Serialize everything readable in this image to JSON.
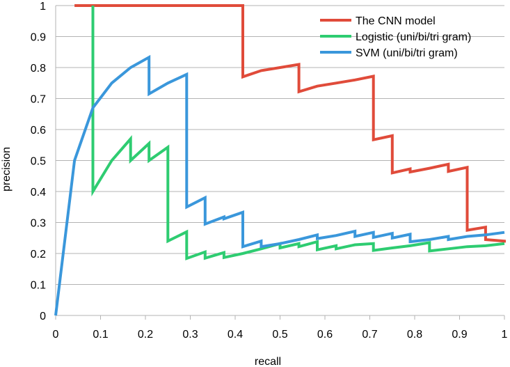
{
  "chart_data": {
    "type": "line",
    "title": "",
    "xlabel": "recall",
    "ylabel": "precision",
    "xlim": [
      0,
      1
    ],
    "ylim": [
      0,
      1
    ],
    "x_ticks": [
      "0",
      "0.1",
      "0.2",
      "0.3",
      "0.4",
      "0.5",
      "0.6",
      "0.7",
      "0.8",
      "0.9",
      "1"
    ],
    "y_ticks": [
      "0",
      "0.1",
      "0.2",
      "0.3",
      "0.4",
      "0.5",
      "0.6",
      "0.7",
      "0.8",
      "0.9",
      "1"
    ],
    "grid": true,
    "legend_position": "top-right",
    "series": [
      {
        "name": "The CNN model",
        "color": "#e04b3a",
        "points": [
          [
            0.042,
            1.0
          ],
          [
            0.417,
            1.0
          ],
          [
            0.417,
            0.77
          ],
          [
            0.458,
            0.79
          ],
          [
            0.5,
            0.8
          ],
          [
            0.542,
            0.81
          ],
          [
            0.542,
            0.722
          ],
          [
            0.583,
            0.74
          ],
          [
            0.625,
            0.75
          ],
          [
            0.667,
            0.76
          ],
          [
            0.708,
            0.772
          ],
          [
            0.708,
            0.567
          ],
          [
            0.75,
            0.58
          ],
          [
            0.75,
            0.46
          ],
          [
            0.79,
            0.473
          ],
          [
            0.79,
            0.463
          ],
          [
            0.833,
            0.475
          ],
          [
            0.875,
            0.488
          ],
          [
            0.875,
            0.465
          ],
          [
            0.917,
            0.478
          ],
          [
            0.917,
            0.275
          ],
          [
            0.958,
            0.285
          ],
          [
            0.958,
            0.245
          ],
          [
            1.0,
            0.24
          ],
          [
            1.0,
            0.235
          ]
        ]
      },
      {
        "name": "Logistic (uni/bi/tri gram)",
        "color": "#2ecc71",
        "points": [
          [
            0.083,
            1.0
          ],
          [
            0.083,
            0.4
          ],
          [
            0.125,
            0.5
          ],
          [
            0.167,
            0.57
          ],
          [
            0.167,
            0.5
          ],
          [
            0.208,
            0.555
          ],
          [
            0.208,
            0.5
          ],
          [
            0.25,
            0.543
          ],
          [
            0.25,
            0.24
          ],
          [
            0.292,
            0.27
          ],
          [
            0.292,
            0.184
          ],
          [
            0.333,
            0.205
          ],
          [
            0.333,
            0.185
          ],
          [
            0.375,
            0.203
          ],
          [
            0.375,
            0.187
          ],
          [
            0.417,
            0.2
          ],
          [
            0.458,
            0.215
          ],
          [
            0.5,
            0.232
          ],
          [
            0.5,
            0.218
          ],
          [
            0.542,
            0.232
          ],
          [
            0.542,
            0.222
          ],
          [
            0.583,
            0.238
          ],
          [
            0.583,
            0.212
          ],
          [
            0.625,
            0.225
          ],
          [
            0.625,
            0.215
          ],
          [
            0.667,
            0.228
          ],
          [
            0.708,
            0.232
          ],
          [
            0.708,
            0.21
          ],
          [
            0.75,
            0.218
          ],
          [
            0.79,
            0.225
          ],
          [
            0.833,
            0.235
          ],
          [
            0.833,
            0.208
          ],
          [
            0.875,
            0.215
          ],
          [
            0.917,
            0.222
          ],
          [
            0.958,
            0.225
          ],
          [
            1.0,
            0.232
          ]
        ]
      },
      {
        "name": "SVM (uni/bi/tri gram)",
        "color": "#3a97db",
        "points": [
          [
            0.0,
            0.0
          ],
          [
            0.042,
            0.5
          ],
          [
            0.083,
            0.67
          ],
          [
            0.125,
            0.75
          ],
          [
            0.167,
            0.8
          ],
          [
            0.208,
            0.833
          ],
          [
            0.208,
            0.715
          ],
          [
            0.25,
            0.75
          ],
          [
            0.292,
            0.778
          ],
          [
            0.292,
            0.35
          ],
          [
            0.333,
            0.38
          ],
          [
            0.333,
            0.295
          ],
          [
            0.375,
            0.318
          ],
          [
            0.375,
            0.312
          ],
          [
            0.417,
            0.333
          ],
          [
            0.417,
            0.222
          ],
          [
            0.458,
            0.24
          ],
          [
            0.458,
            0.222
          ],
          [
            0.5,
            0.232
          ],
          [
            0.542,
            0.245
          ],
          [
            0.583,
            0.26
          ],
          [
            0.583,
            0.248
          ],
          [
            0.625,
            0.258
          ],
          [
            0.667,
            0.272
          ],
          [
            0.667,
            0.255
          ],
          [
            0.708,
            0.268
          ],
          [
            0.708,
            0.252
          ],
          [
            0.75,
            0.265
          ],
          [
            0.75,
            0.25
          ],
          [
            0.79,
            0.262
          ],
          [
            0.79,
            0.238
          ],
          [
            0.833,
            0.245
          ],
          [
            0.875,
            0.255
          ],
          [
            0.875,
            0.245
          ],
          [
            0.917,
            0.255
          ],
          [
            0.958,
            0.26
          ],
          [
            1.0,
            0.268
          ]
        ]
      }
    ]
  }
}
